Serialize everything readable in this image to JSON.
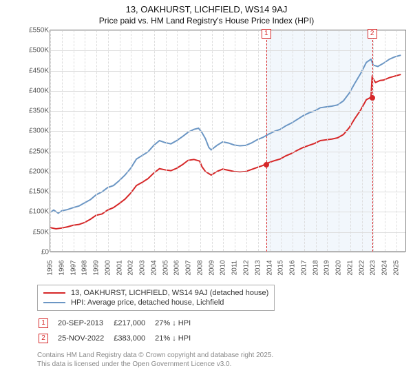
{
  "title": "13, OAKHURST, LICHFIELD, WS14 9AJ",
  "subtitle": "Price paid vs. HM Land Registry's House Price Index (HPI)",
  "chart": {
    "type": "line",
    "background_color": "#ffffff",
    "grid_color": "#dddddd",
    "axis_color": "#888888",
    "shaded_region_color": "#e6f0fa",
    "shaded_region_x": [
      2013.72,
      2022.9
    ],
    "x": {
      "min": 1995,
      "max": 2025.9,
      "ticks": [
        1995,
        1996,
        1997,
        1998,
        1999,
        2000,
        2001,
        2002,
        2003,
        2004,
        2005,
        2006,
        2007,
        2008,
        2009,
        2010,
        2011,
        2012,
        2013,
        2014,
        2015,
        2016,
        2017,
        2018,
        2019,
        2020,
        2021,
        2022,
        2023,
        2024,
        2025
      ]
    },
    "y": {
      "min": 0,
      "max": 550000,
      "unit_prefix": "£",
      "unit_suffix": "K",
      "divisor": 1000,
      "ticks": [
        0,
        50000,
        100000,
        150000,
        200000,
        250000,
        300000,
        350000,
        400000,
        450000,
        500000,
        550000
      ]
    },
    "series": [
      {
        "id": "property",
        "label": "13, OAKHURST, LICHFIELD, WS14 9AJ (detached house)",
        "color": "#d62728",
        "points": [
          [
            1995,
            58000
          ],
          [
            1995.5,
            55000
          ],
          [
            1996,
            57000
          ],
          [
            1996.5,
            60000
          ],
          [
            1997,
            64000
          ],
          [
            1997.5,
            66000
          ],
          [
            1998,
            71000
          ],
          [
            1998.5,
            79000
          ],
          [
            1999,
            89000
          ],
          [
            1999.5,
            92000
          ],
          [
            2000,
            102000
          ],
          [
            2000.5,
            108000
          ],
          [
            2001,
            118000
          ],
          [
            2001.5,
            129000
          ],
          [
            2002,
            144000
          ],
          [
            2002.5,
            163000
          ],
          [
            2003,
            171000
          ],
          [
            2003.5,
            180000
          ],
          [
            2004,
            194000
          ],
          [
            2004.5,
            205000
          ],
          [
            2005,
            202000
          ],
          [
            2005.5,
            200000
          ],
          [
            2006,
            206000
          ],
          [
            2006.5,
            215000
          ],
          [
            2007,
            226000
          ],
          [
            2007.5,
            228000
          ],
          [
            2008,
            224000
          ],
          [
            2008.2,
            210000
          ],
          [
            2008.5,
            198000
          ],
          [
            2009,
            189000
          ],
          [
            2009.5,
            198000
          ],
          [
            2010,
            204000
          ],
          [
            2010.5,
            201000
          ],
          [
            2011,
            198000
          ],
          [
            2011.5,
            197000
          ],
          [
            2012,
            198000
          ],
          [
            2012.5,
            203000
          ],
          [
            2013,
            208000
          ],
          [
            2013.5,
            213000
          ],
          [
            2013.72,
            217000
          ],
          [
            2014,
            220000
          ],
          [
            2014.5,
            225000
          ],
          [
            2015,
            229000
          ],
          [
            2015.5,
            237000
          ],
          [
            2016,
            243000
          ],
          [
            2016.5,
            251000
          ],
          [
            2017,
            258000
          ],
          [
            2017.5,
            263000
          ],
          [
            2018,
            268000
          ],
          [
            2018.5,
            275000
          ],
          [
            2019,
            277000
          ],
          [
            2019.5,
            279000
          ],
          [
            2020,
            282000
          ],
          [
            2020.5,
            290000
          ],
          [
            2021,
            307000
          ],
          [
            2021.5,
            330000
          ],
          [
            2022,
            351000
          ],
          [
            2022.5,
            377000
          ],
          [
            2022.9,
            383000
          ],
          [
            2023,
            433000
          ],
          [
            2023.3,
            420000
          ],
          [
            2023.7,
            425000
          ],
          [
            2024,
            426000
          ],
          [
            2024.5,
            432000
          ],
          [
            2025,
            436000
          ],
          [
            2025.5,
            440000
          ]
        ]
      },
      {
        "id": "hpi",
        "label": "HPI: Average price, detached house, Lichfield",
        "color": "#6b96c4",
        "points": [
          [
            1995,
            96000
          ],
          [
            1995.3,
            102000
          ],
          [
            1995.7,
            94000
          ],
          [
            1996,
            100000
          ],
          [
            1996.5,
            103000
          ],
          [
            1997,
            108000
          ],
          [
            1997.5,
            112000
          ],
          [
            1998,
            120000
          ],
          [
            1998.5,
            128000
          ],
          [
            1999,
            140000
          ],
          [
            1999.5,
            147000
          ],
          [
            2000,
            158000
          ],
          [
            2000.5,
            163000
          ],
          [
            2001,
            175000
          ],
          [
            2001.5,
            189000
          ],
          [
            2002,
            206000
          ],
          [
            2002.5,
            229000
          ],
          [
            2003,
            238000
          ],
          [
            2003.5,
            247000
          ],
          [
            2004,
            263000
          ],
          [
            2004.5,
            275000
          ],
          [
            2005,
            270000
          ],
          [
            2005.5,
            267000
          ],
          [
            2006,
            275000
          ],
          [
            2006.5,
            285000
          ],
          [
            2007,
            296000
          ],
          [
            2007.5,
            303000
          ],
          [
            2007.9,
            306000
          ],
          [
            2008.2,
            295000
          ],
          [
            2008.5,
            280000
          ],
          [
            2008.8,
            258000
          ],
          [
            2009,
            252000
          ],
          [
            2009.5,
            263000
          ],
          [
            2010,
            272000
          ],
          [
            2010.5,
            269000
          ],
          [
            2011,
            264000
          ],
          [
            2011.5,
            262000
          ],
          [
            2012,
            263000
          ],
          [
            2012.5,
            269000
          ],
          [
            2013,
            277000
          ],
          [
            2013.5,
            283000
          ],
          [
            2014,
            291000
          ],
          [
            2014.5,
            298000
          ],
          [
            2015,
            303000
          ],
          [
            2015.5,
            312000
          ],
          [
            2016,
            319000
          ],
          [
            2016.5,
            328000
          ],
          [
            2017,
            337000
          ],
          [
            2017.5,
            344000
          ],
          [
            2018,
            349000
          ],
          [
            2018.5,
            357000
          ],
          [
            2019,
            359000
          ],
          [
            2019.5,
            361000
          ],
          [
            2020,
            364000
          ],
          [
            2020.5,
            374000
          ],
          [
            2021,
            393000
          ],
          [
            2021.5,
            418000
          ],
          [
            2022,
            442000
          ],
          [
            2022.5,
            470000
          ],
          [
            2022.9,
            478000
          ],
          [
            2023.1,
            463000
          ],
          [
            2023.5,
            460000
          ],
          [
            2024,
            468000
          ],
          [
            2024.5,
            478000
          ],
          [
            2025,
            484000
          ],
          [
            2025.5,
            488000
          ]
        ]
      }
    ],
    "markers": [
      {
        "n": 1,
        "x": 2013.72,
        "y": 217000,
        "color": "#d62728"
      },
      {
        "n": 2,
        "x": 2022.9,
        "y": 383000,
        "color": "#d62728"
      }
    ]
  },
  "legend": [
    {
      "color": "#d62728",
      "label": "13, OAKHURST, LICHFIELD, WS14 9AJ (detached house)"
    },
    {
      "color": "#6b96c4",
      "label": "HPI: Average price, detached house, Lichfield"
    }
  ],
  "sales": [
    {
      "n": 1,
      "color": "#d62728",
      "date": "20-SEP-2013",
      "price": "£217,000",
      "vs_hpi": "27% ↓ HPI"
    },
    {
      "n": 2,
      "color": "#d62728",
      "date": "25-NOV-2022",
      "price": "£383,000",
      "vs_hpi": "21% ↓ HPI"
    }
  ],
  "attribution": {
    "line1": "Contains HM Land Registry data © Crown copyright and database right 2025.",
    "line2": "This data is licensed under the Open Government Licence v3.0."
  }
}
